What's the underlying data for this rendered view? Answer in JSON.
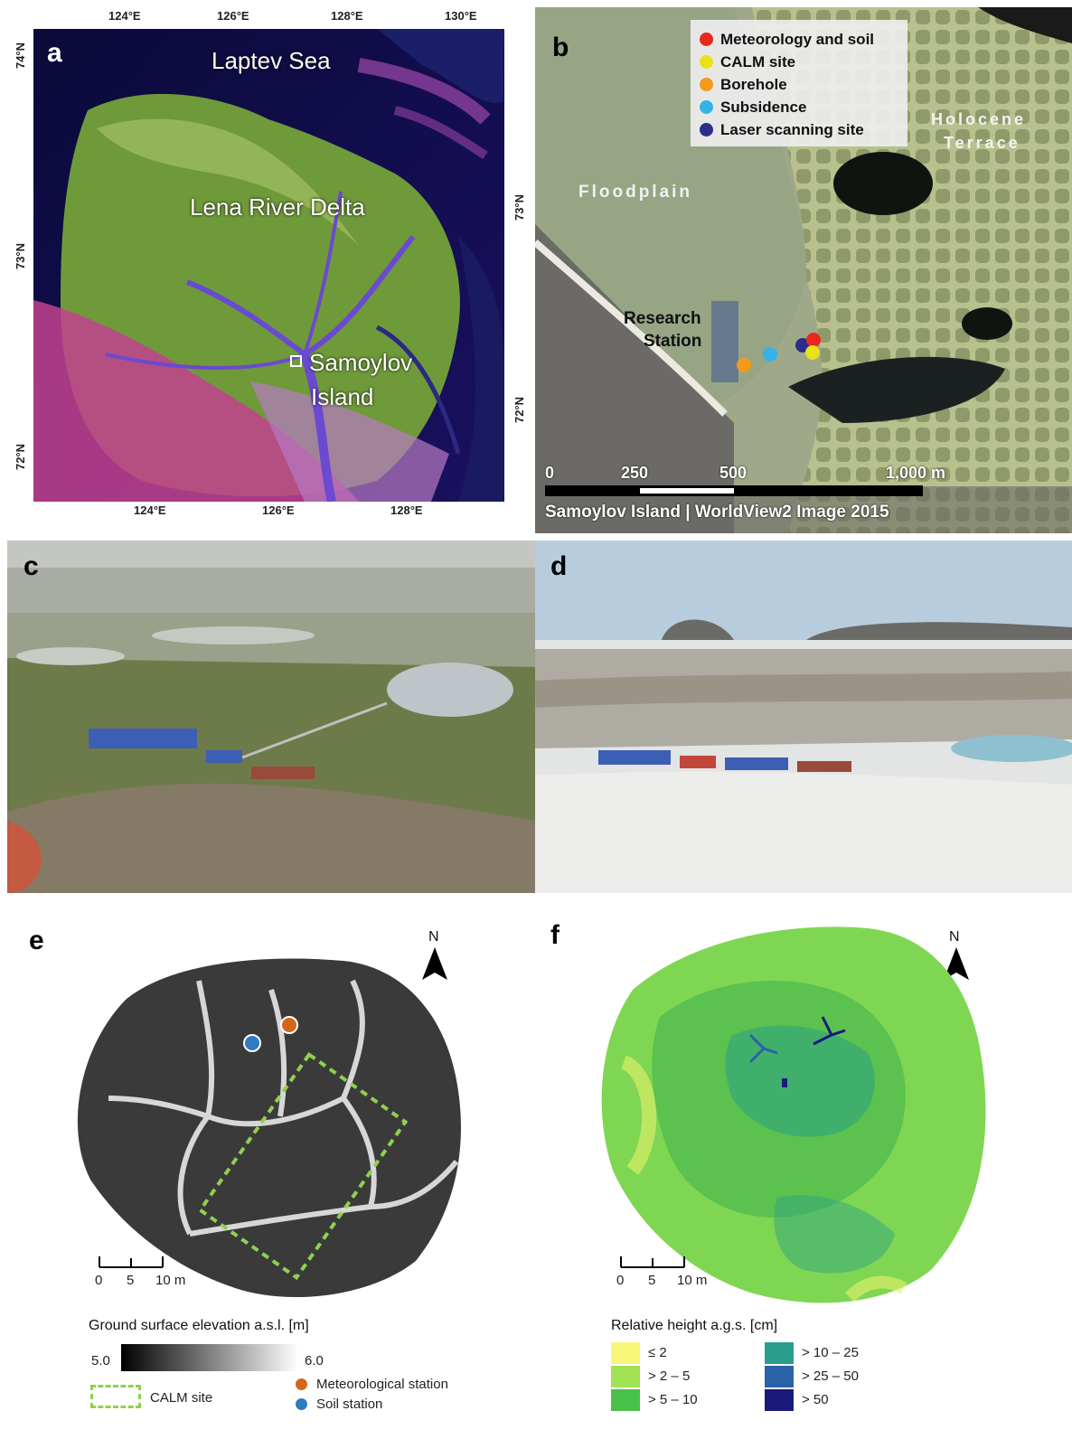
{
  "panel_a": {
    "letter": "a",
    "lon_labels_top": [
      "124°E",
      "126°E",
      "128°E",
      "130°E"
    ],
    "lon_labels_bottom": [
      "124°E",
      "126°E",
      "128°E"
    ],
    "lat_labels_left": [
      "74°N",
      "73°N",
      "72°N"
    ],
    "lat_labels_right": [
      "73°N",
      "72°N"
    ],
    "places": {
      "sea": "Laptev Sea",
      "delta": "Lena River Delta",
      "island_line1": "Samoylov",
      "island_line2": "Island"
    }
  },
  "panel_b": {
    "letter": "b",
    "legend": [
      {
        "label": "Meteorology and soil",
        "color": "#e8271f"
      },
      {
        "label": "CALM site",
        "color": "#e9e21b"
      },
      {
        "label": "Borehole",
        "color": "#f39a1b"
      },
      {
        "label": "Subsidence",
        "color": "#33b3e8"
      },
      {
        "label": "Laser scanning site",
        "color": "#2a2e8a"
      }
    ],
    "terrace_line1": "Holocene",
    "terrace_line2": "Terrace",
    "floodplain": "Floodplain",
    "station_line1": "Research",
    "station_line2": "Station",
    "scale_ticks": [
      "0",
      "250",
      "500",
      "1,000 m"
    ],
    "caption": "Samoylov Island | WorldView2 Image 2015"
  },
  "panel_c": {
    "letter": "c"
  },
  "panel_d": {
    "letter": "d"
  },
  "panel_e": {
    "letter": "e",
    "north": "N",
    "scale_ticks": [
      "0",
      "5",
      "10 m"
    ],
    "legend_title": "Ground surface elevation a.s.l. [m]",
    "ramp_min": "5.0",
    "ramp_max": "6.0",
    "calm_label": "CALM site",
    "met_label": "Meteorological station",
    "soil_label": "Soil station",
    "met_color": "#d4651c",
    "soil_color": "#2f7bc0",
    "calm_color": "#8fd14f"
  },
  "panel_f": {
    "letter": "f",
    "north": "N",
    "scale_ticks": [
      "0",
      "5",
      "10 m"
    ],
    "legend_title": "Relative height a.g.s. [cm]",
    "classes": [
      {
        "label": "≤ 2",
        "color": "#f9f77a"
      },
      {
        "label": "> 2 – 5",
        "color": "#a3e254"
      },
      {
        "label": "> 5 – 10",
        "color": "#48c04a"
      },
      {
        "label": "> 10 – 25",
        "color": "#2a9e8e"
      },
      {
        "label": "> 25 – 50",
        "color": "#2a62a8"
      },
      {
        "label": "> 50",
        "color": "#1a1a7a"
      }
    ]
  }
}
